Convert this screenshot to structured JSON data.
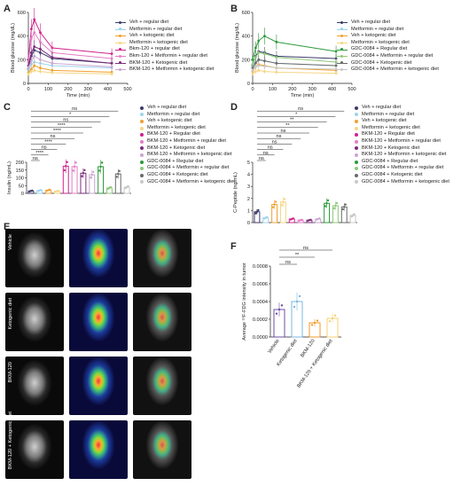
{
  "panels": {
    "A": "A",
    "B": "B",
    "C": "C",
    "D": "D",
    "E": "E",
    "F": "F"
  },
  "colors": {
    "veh_reg": "#3a3a6a",
    "met_reg": "#9ed3ee",
    "veh_keto": "#f0a030",
    "met_keto": "#f6d684",
    "bkm_reg": "#d0228c",
    "bkm_met_reg": "#e47cc5",
    "bkm_keto": "#7a2c7a",
    "bkm_met_keto": "#c9a6cf",
    "gdc_reg": "#2e9a3c",
    "gdc_met_reg": "#8ec97a",
    "gdc_keto": "#6a6a6a",
    "gdc_met_keto": "#c8c8c8",
    "vehicle": "#6d4fa6",
    "keto": "#7ab7e0",
    "bkm": "#f09a2a",
    "bkm_keto_f": "#f6d070"
  },
  "chart_data": [
    {
      "panel": "A",
      "type": "line",
      "xlabel": "Time (min)",
      "ylabel": "Blood glucose (mg/dL)",
      "xlim": [
        0,
        500
      ],
      "ylim": [
        0,
        600
      ],
      "xticks": [
        "0",
        "100",
        "200",
        "300",
        "400",
        "500"
      ],
      "yticks": [
        "0",
        "200",
        "400",
        "600"
      ],
      "x": [
        0,
        15,
        30,
        60,
        120,
        420
      ],
      "series": [
        {
          "name": "Veh + regular diet",
          "key": "veh_reg",
          "values": [
            120,
            230,
            280,
            260,
            210,
            170
          ]
        },
        {
          "name": "Metformin + regular diet",
          "key": "met_reg",
          "values": [
            110,
            160,
            180,
            170,
            150,
            130
          ]
        },
        {
          "name": "Veh + ketogenic diet",
          "key": "veh_keto",
          "values": [
            90,
            120,
            150,
            130,
            110,
            95
          ]
        },
        {
          "name": "Metformin + ketogenic diet",
          "key": "met_keto",
          "values": [
            80,
            100,
            110,
            100,
            90,
            80
          ]
        },
        {
          "name": "Bkm-120 + regular diet",
          "key": "bkm_reg",
          "values": [
            200,
            460,
            540,
            430,
            300,
            250
          ]
        },
        {
          "name": "Bkm-120 + Metformin + regular diet",
          "key": "bkm_met_reg",
          "values": [
            180,
            380,
            430,
            350,
            260,
            210
          ]
        },
        {
          "name": "BKM-120 + Ketogenic diet",
          "key": "bkm_keto",
          "values": [
            150,
            260,
            310,
            290,
            220,
            170
          ]
        },
        {
          "name": "BKM-120 + Metformin + ketogenic diet",
          "key": "bkm_met_keto",
          "values": [
            130,
            190,
            230,
            200,
            170,
            140
          ]
        }
      ]
    },
    {
      "panel": "B",
      "type": "line",
      "xlabel": "Time (min)",
      "ylabel": "Blood glucose (mg/dL)",
      "xlim": [
        0,
        500
      ],
      "ylim": [
        0,
        600
      ],
      "xticks": [
        "0",
        "100",
        "200",
        "300",
        "400",
        "500"
      ],
      "yticks": [
        "0",
        "200",
        "400",
        "600"
      ],
      "x": [
        0,
        15,
        30,
        60,
        120,
        420
      ],
      "series": [
        {
          "name": "Veh + regular diet",
          "key": "veh_reg",
          "values": [
            150,
            230,
            270,
            260,
            230,
            210
          ]
        },
        {
          "name": "Metformin + regular diet",
          "key": "met_reg",
          "values": [
            140,
            180,
            200,
            190,
            170,
            150
          ]
        },
        {
          "name": "Veh + ketogenic diet",
          "key": "veh_keto",
          "values": [
            100,
            140,
            160,
            150,
            130,
            110
          ]
        },
        {
          "name": "Metformin + ketogenic diet",
          "key": "met_keto",
          "values": [
            80,
            100,
            110,
            100,
            95,
            85
          ]
        },
        {
          "name": "GDC-0084 + Regular diet",
          "key": "gdc_reg",
          "values": [
            200,
            300,
            360,
            400,
            350,
            270
          ]
        },
        {
          "name": "GDC-0084 + Metformin + regular diet",
          "key": "gdc_met_reg",
          "values": [
            160,
            220,
            260,
            250,
            220,
            180
          ]
        },
        {
          "name": "GDC-0084 + Ketogenic diet",
          "key": "gdc_keto",
          "values": [
            130,
            170,
            200,
            190,
            170,
            150
          ]
        },
        {
          "name": "GDC-0084 + Metformin + ketogenic diet",
          "key": "gdc_met_keto",
          "values": [
            110,
            140,
            150,
            145,
            130,
            120
          ]
        }
      ]
    },
    {
      "panel": "C",
      "type": "bar",
      "ylabel": "Insulin (ng/mL)",
      "ylim": [
        0,
        200
      ],
      "yticks": [
        "0",
        "50",
        "100",
        "150",
        "200"
      ],
      "categories": [
        "Veh + regular diet",
        "Metformin + regular diet",
        "Veh + ketogenic diet",
        "Metformin + ketogenic diet",
        "BKM-120 + Regular diet",
        "BKM-120 + Metformin + regular diet",
        "BKM-120 + Ketogenic diet",
        "BKM-120 + Metformin + ketogenic diet",
        "GDC-0084 + Regular diet",
        "GDC-0084 + Metformin + regular diet",
        "GDC-0084 + Ketogenic diet",
        "GDC-0084 + Metformin + ketogenic diet"
      ],
      "keys": [
        "veh_reg",
        "met_reg",
        "veh_keto",
        "met_keto",
        "bkm_reg",
        "bkm_met_reg",
        "bkm_keto",
        "bkm_met_keto",
        "gdc_reg",
        "gdc_met_reg",
        "gdc_keto",
        "gdc_met_keto"
      ],
      "values": [
        15,
        18,
        20,
        14,
        175,
        172,
        130,
        120,
        172,
        35,
        125,
        40
      ],
      "sig": [
        "ns",
        "****",
        "ns",
        "****",
        "ns",
        "****",
        "****",
        "ns",
        "*",
        "ns"
      ]
    },
    {
      "panel": "D",
      "type": "bar",
      "ylabel": "C-Peptide (ng/mL)",
      "ylim": [
        0,
        5
      ],
      "yticks": [
        "0",
        "1",
        "2",
        "3",
        "4",
        "5"
      ],
      "categories": [
        "Veh + regular diet",
        "Metformin + regular diet",
        "Veh + ketogenic diet",
        "Metformin + ketogenic diet",
        "BKM-120 + Regular diet",
        "BKM-120 + Metformin + regular diet",
        "BKM-120 + Ketogenic diet",
        "BKM-120 + Metformin + ketogenic diet",
        "GDC-0084 + Regular diet",
        "GDC-0084 + Metformin + regular diet",
        "GDC-0084 + Ketogenic diet",
        "GDC-0084 + Metformin + ketogenic diet"
      ],
      "keys": [
        "veh_reg",
        "met_reg",
        "veh_keto",
        "met_keto",
        "bkm_reg",
        "bkm_met_reg",
        "bkm_keto",
        "bkm_met_keto",
        "gdc_reg",
        "gdc_met_reg",
        "gdc_keto",
        "gdc_met_keto"
      ],
      "values": [
        0.9,
        0.4,
        1.5,
        1.7,
        0.3,
        0.2,
        0.2,
        0.3,
        1.6,
        1.4,
        1.3,
        0.6
      ],
      "sig": [
        "ns",
        "ns",
        "ns",
        "ns",
        "ns",
        "ns",
        "**",
        "**",
        "*",
        "ns"
      ]
    },
    {
      "panel": "F",
      "type": "bar",
      "ylabel": "Average ¹⁸F-FDG intensity in tumor",
      "ylim": [
        0,
        0.0008
      ],
      "yticks": [
        "0.0000",
        "0.0002",
        "0.0004",
        "0.0006",
        "0.0008"
      ],
      "categories": [
        "Vehicle",
        "Ketogenic diet",
        "BKM-120",
        "BKM-120 + Ketogenic diet"
      ],
      "keys": [
        "vehicle",
        "keto",
        "bkm",
        "bkm_keto_f"
      ],
      "values": [
        0.00031,
        0.0004,
        0.00016,
        0.00021
      ],
      "sig": [
        "ns",
        "**",
        "ns"
      ]
    }
  ],
  "image_panel": {
    "rows": [
      "Vehicle",
      "Ketogenic diet",
      "BKM-120",
      "BKM-120 + Ketogenic diet"
    ]
  }
}
